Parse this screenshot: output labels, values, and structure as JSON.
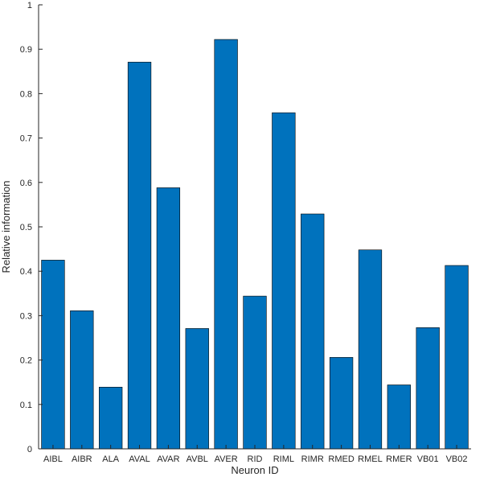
{
  "chart_data": {
    "type": "bar",
    "categories": [
      "AIBL",
      "AIBR",
      "ALA",
      "AVAL",
      "AVAR",
      "AVBL",
      "AVER",
      "RID",
      "RIML",
      "RIMR",
      "RMED",
      "RMEL",
      "RMER",
      "VB01",
      "VB02"
    ],
    "values": [
      0.425,
      0.311,
      0.139,
      0.871,
      0.588,
      0.271,
      0.922,
      0.344,
      0.757,
      0.529,
      0.206,
      0.448,
      0.144,
      0.273,
      0.413
    ],
    "xlabel": "Neuron ID",
    "ylabel": "Relative information",
    "ylim": [
      0,
      1
    ],
    "yticks": [
      "0",
      "0.1",
      "0.2",
      "0.3",
      "0.4",
      "0.5",
      "0.6",
      "0.7",
      "0.8",
      "0.9",
      "1"
    ],
    "grid": false,
    "bar_color": "#0072BD",
    "bar_edge_color": "#000000",
    "axis_color": "#262626"
  }
}
